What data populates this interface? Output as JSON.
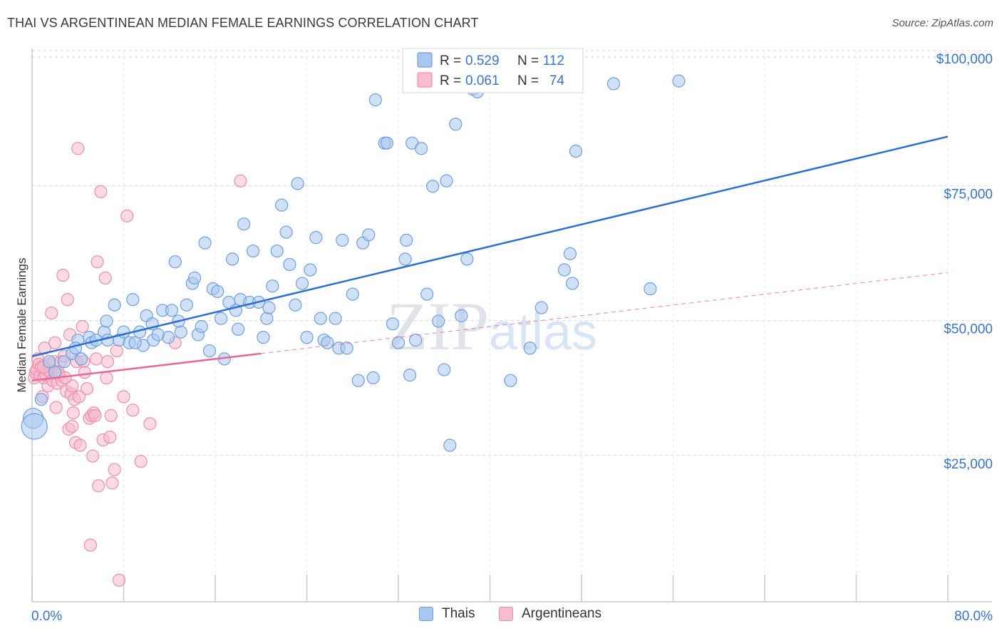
{
  "title": "THAI VS ARGENTINEAN MEDIAN FEMALE EARNINGS CORRELATION CHART",
  "source": "Source: ZipAtlas.com",
  "watermark": "ZIPatlas",
  "colors": {
    "thais_fill": "#a9c8f0",
    "thais_stroke": "#6f9fdc",
    "thais_line": "#2c6fd1",
    "arg_fill": "#f7bccd",
    "arg_stroke": "#ec8fab",
    "arg_line": "#e8669a",
    "axis_text": "#3a74c9",
    "grid": "#d6d6d6"
  },
  "legend": {
    "r_label": "R =",
    "n_label": "N =",
    "entries": [
      {
        "r": "0.529",
        "n": "112"
      },
      {
        "r": "0.061",
        "n": "74"
      }
    ]
  },
  "chart_data": {
    "type": "scatter",
    "title": "THAI VS ARGENTINEAN MEDIAN FEMALE EARNINGS CORRELATION CHART",
    "xlabel": "",
    "ylabel": "Median Female Earnings",
    "xlim": [
      0,
      80
    ],
    "ylim": [
      0,
      102000
    ],
    "x_tick_labels": [
      "0.0%",
      "80.0%"
    ],
    "y_ticks": [
      {
        "value": 25000,
        "label": "$25,000"
      },
      {
        "value": 50000,
        "label": "$50,000"
      },
      {
        "value": 75000,
        "label": "$75,000"
      },
      {
        "value": 100000,
        "label": "$100,000"
      }
    ],
    "grid": true,
    "series": [
      {
        "name": "Thais",
        "r": 0.529,
        "n": 112,
        "trend": {
          "x": [
            0,
            80
          ],
          "y": [
            45500,
            86200
          ],
          "style": "solid"
        },
        "points": [
          [
            0.1,
            34000
          ],
          [
            0.2,
            32500
          ],
          [
            0.8,
            37500
          ],
          [
            1.5,
            44500
          ],
          [
            2.0,
            42500
          ],
          [
            2.8,
            44500
          ],
          [
            3.5,
            46000
          ],
          [
            4.0,
            48500
          ],
          [
            5.0,
            49000
          ],
          [
            5.2,
            48000
          ],
          [
            5.6,
            48500
          ],
          [
            6.3,
            50000
          ],
          [
            6.5,
            52000
          ],
          [
            7.2,
            55000
          ],
          [
            7.6,
            48500
          ],
          [
            8.0,
            50000
          ],
          [
            8.5,
            48000
          ],
          [
            8.8,
            56000
          ],
          [
            9.4,
            50000
          ],
          [
            9.7,
            47500
          ],
          [
            10.0,
            53000
          ],
          [
            10.5,
            51500
          ],
          [
            10.6,
            48500
          ],
          [
            11.4,
            54000
          ],
          [
            11.9,
            49000
          ],
          [
            12.2,
            54000
          ],
          [
            12.5,
            63000
          ],
          [
            13.0,
            50000
          ],
          [
            13.5,
            55000
          ],
          [
            14.0,
            59000
          ],
          [
            14.2,
            60000
          ],
          [
            14.5,
            49500
          ],
          [
            14.8,
            51000
          ],
          [
            15.1,
            66500
          ],
          [
            15.5,
            46500
          ],
          [
            15.8,
            58000
          ],
          [
            16.2,
            57500
          ],
          [
            16.5,
            52500
          ],
          [
            16.8,
            45000
          ],
          [
            17.2,
            55500
          ],
          [
            17.5,
            63500
          ],
          [
            17.8,
            54000
          ],
          [
            18.2,
            56000
          ],
          [
            18.5,
            70000
          ],
          [
            19.0,
            55500
          ],
          [
            19.3,
            65000
          ],
          [
            19.8,
            55500
          ],
          [
            20.2,
            49000
          ],
          [
            20.5,
            52500
          ],
          [
            20.7,
            54500
          ],
          [
            21.0,
            58500
          ],
          [
            21.4,
            65000
          ],
          [
            21.8,
            73500
          ],
          [
            22.2,
            68500
          ],
          [
            22.5,
            62500
          ],
          [
            23.0,
            55000
          ],
          [
            23.2,
            77500
          ],
          [
            23.6,
            59000
          ],
          [
            24.0,
            49000
          ],
          [
            24.3,
            61500
          ],
          [
            24.8,
            67500
          ],
          [
            25.2,
            52500
          ],
          [
            25.5,
            48500
          ],
          [
            25.8,
            48000
          ],
          [
            26.5,
            52500
          ],
          [
            26.8,
            47000
          ],
          [
            27.1,
            67000
          ],
          [
            27.5,
            47000
          ],
          [
            28.0,
            57000
          ],
          [
            28.5,
            41000
          ],
          [
            28.9,
            66500
          ],
          [
            29.4,
            68000
          ],
          [
            29.8,
            41500
          ],
          [
            30.0,
            93000
          ],
          [
            30.8,
            85000
          ],
          [
            31.0,
            85000
          ],
          [
            31.5,
            51500
          ],
          [
            32.0,
            48000
          ],
          [
            32.6,
            63500
          ],
          [
            32.7,
            67000
          ],
          [
            33.0,
            42000
          ],
          [
            33.2,
            85000
          ],
          [
            33.5,
            48500
          ],
          [
            34.0,
            84000
          ],
          [
            34.5,
            57000
          ],
          [
            35.0,
            77000
          ],
          [
            35.5,
            52000
          ],
          [
            36.0,
            43000
          ],
          [
            36.2,
            78000
          ],
          [
            36.5,
            29000
          ],
          [
            37.0,
            88500
          ],
          [
            37.5,
            53000
          ],
          [
            38.0,
            63500
          ],
          [
            38.5,
            95000
          ],
          [
            38.9,
            94500
          ],
          [
            41.8,
            41000
          ],
          [
            43.5,
            47000
          ],
          [
            44.5,
            54500
          ],
          [
            46.5,
            61500
          ],
          [
            47.0,
            64500
          ],
          [
            47.2,
            59000
          ],
          [
            47.5,
            83500
          ],
          [
            50.8,
            96000
          ],
          [
            54.0,
            58000
          ],
          [
            56.5,
            96500
          ],
          [
            4.3,
            45000
          ],
          [
            6.6,
            48500
          ],
          [
            9.0,
            48000
          ],
          [
            11.0,
            49500
          ],
          [
            12.8,
            52000
          ],
          [
            3.8,
            47000
          ],
          [
            18.0,
            50500
          ]
        ]
      },
      {
        "name": "Argentineans",
        "r": 0.061,
        "n": 74,
        "trend": {
          "x": [
            0,
            20
          ],
          "y": [
            41000,
            46000
          ],
          "style": "solid"
        },
        "trend_ext": {
          "x": [
            20,
            80
          ],
          "y": [
            46000,
            61000
          ],
          "style": "dashed"
        },
        "points": [
          [
            0.2,
            41500
          ],
          [
            0.3,
            42500
          ],
          [
            0.4,
            43000
          ],
          [
            0.5,
            45000
          ],
          [
            0.6,
            44000
          ],
          [
            0.7,
            42000
          ],
          [
            0.8,
            43500
          ],
          [
            0.9,
            38000
          ],
          [
            1.0,
            41500
          ],
          [
            1.1,
            47000
          ],
          [
            1.2,
            42000
          ],
          [
            1.3,
            43000
          ],
          [
            1.4,
            40000
          ],
          [
            1.5,
            44000
          ],
          [
            1.6,
            42500
          ],
          [
            1.7,
            53500
          ],
          [
            1.8,
            41000
          ],
          [
            1.9,
            44500
          ],
          [
            2.0,
            48000
          ],
          [
            2.1,
            36000
          ],
          [
            2.2,
            40500
          ],
          [
            2.4,
            42000
          ],
          [
            2.5,
            44500
          ],
          [
            2.6,
            41000
          ],
          [
            2.7,
            60500
          ],
          [
            2.8,
            45500
          ],
          [
            3.0,
            39000
          ],
          [
            3.1,
            56000
          ],
          [
            3.2,
            32000
          ],
          [
            3.3,
            49500
          ],
          [
            3.4,
            38500
          ],
          [
            3.5,
            40000
          ],
          [
            3.6,
            35000
          ],
          [
            3.7,
            37500
          ],
          [
            3.8,
            29500
          ],
          [
            3.9,
            44500
          ],
          [
            4.0,
            84000
          ],
          [
            4.2,
            29000
          ],
          [
            4.4,
            51000
          ],
          [
            4.5,
            44500
          ],
          [
            4.6,
            42500
          ],
          [
            4.8,
            39500
          ],
          [
            5.0,
            34000
          ],
          [
            5.1,
            10500
          ],
          [
            5.2,
            34500
          ],
          [
            5.4,
            35000
          ],
          [
            5.5,
            34500
          ],
          [
            5.6,
            45000
          ],
          [
            5.7,
            63000
          ],
          [
            5.8,
            21500
          ],
          [
            6.0,
            76000
          ],
          [
            6.2,
            30000
          ],
          [
            6.4,
            60000
          ],
          [
            6.5,
            41500
          ],
          [
            6.6,
            44500
          ],
          [
            6.8,
            30500
          ],
          [
            7.0,
            22000
          ],
          [
            7.2,
            24500
          ],
          [
            7.4,
            46500
          ],
          [
            7.6,
            4000
          ],
          [
            8.0,
            38000
          ],
          [
            8.3,
            71500
          ],
          [
            8.8,
            35500
          ],
          [
            9.5,
            26000
          ],
          [
            10.3,
            33000
          ],
          [
            12.5,
            48000
          ],
          [
            18.2,
            78000
          ],
          [
            3.5,
            32500
          ],
          [
            6.9,
            34500
          ],
          [
            5.3,
            27000
          ],
          [
            2.3,
            42500
          ],
          [
            1.0,
            43500
          ],
          [
            4.1,
            38000
          ],
          [
            2.9,
            41500
          ]
        ]
      }
    ]
  }
}
